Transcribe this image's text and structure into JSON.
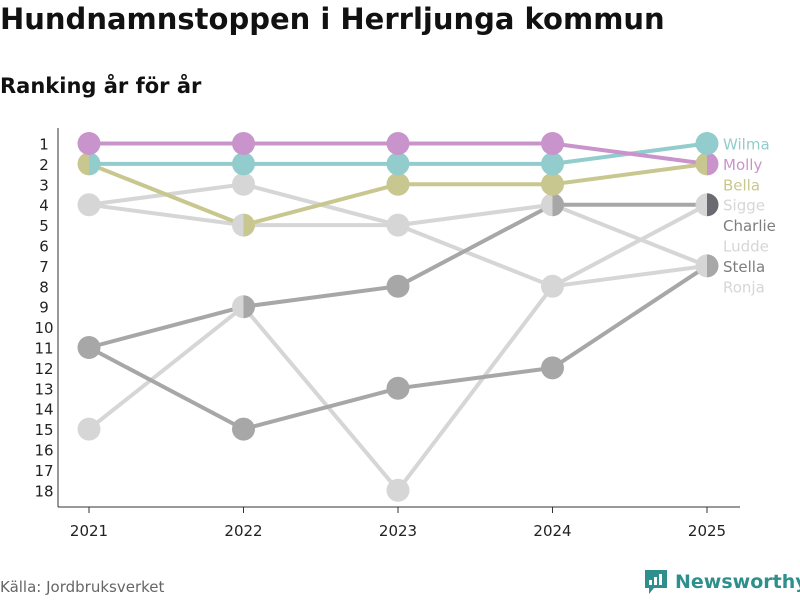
{
  "header": {
    "title": "Hundnamnstoppen i Herrljunga kommun",
    "subtitle": "Ranking år för år"
  },
  "footer": {
    "source": "Källa: Jordbruksverket",
    "brand": "Newsworthy"
  },
  "colors": {
    "Molly": "#c994cc",
    "Wilma": "#93cccc",
    "Bella": "#c8c78f",
    "Sigge": "#d6d6d6",
    "Charlie": "#a7a7a7",
    "Ludde": "#d6d6d6",
    "Stella": "#a7a7a7",
    "Ronja": "#d6d6d6",
    "Charlie_2025": "#6a6a70",
    "brand": "#2f8f8c"
  },
  "chart_data": {
    "type": "line",
    "title": "Hundnamnstoppen i Herrljunga kommun",
    "subtitle": "Ranking år för år",
    "x": [
      "2021",
      "2022",
      "2023",
      "2024",
      "2025"
    ],
    "y_ticks": [
      "1",
      "2",
      "3",
      "4",
      "5",
      "6",
      "7",
      "8",
      "9",
      "10",
      "11",
      "12",
      "13",
      "14",
      "15",
      "16",
      "17",
      "18"
    ],
    "ylim": [
      1,
      18
    ],
    "y_inverted": true,
    "series": [
      {
        "name": "Ronja",
        "values": [
          15,
          9,
          18,
          8,
          4
        ]
      },
      {
        "name": "Ludde",
        "values": [
          4,
          3,
          5,
          8,
          7
        ]
      },
      {
        "name": "Sigge",
        "values": [
          4,
          5,
          5,
          4,
          7
        ]
      },
      {
        "name": "Stella",
        "values": [
          11,
          15,
          13,
          12,
          7
        ]
      },
      {
        "name": "Charlie",
        "values": [
          11,
          9,
          8,
          4,
          4
        ]
      },
      {
        "name": "Bella",
        "values": [
          2,
          5,
          3,
          3,
          2
        ]
      },
      {
        "name": "Wilma",
        "values": [
          2,
          2,
          2,
          2,
          1
        ]
      },
      {
        "name": "Molly",
        "values": [
          1,
          1,
          1,
          1,
          2
        ]
      }
    ],
    "legend_labels": [
      "Wilma",
      "Molly",
      "Bella",
      "Sigge",
      "Charlie",
      "Ludde",
      "Stella",
      "Ronja"
    ]
  }
}
